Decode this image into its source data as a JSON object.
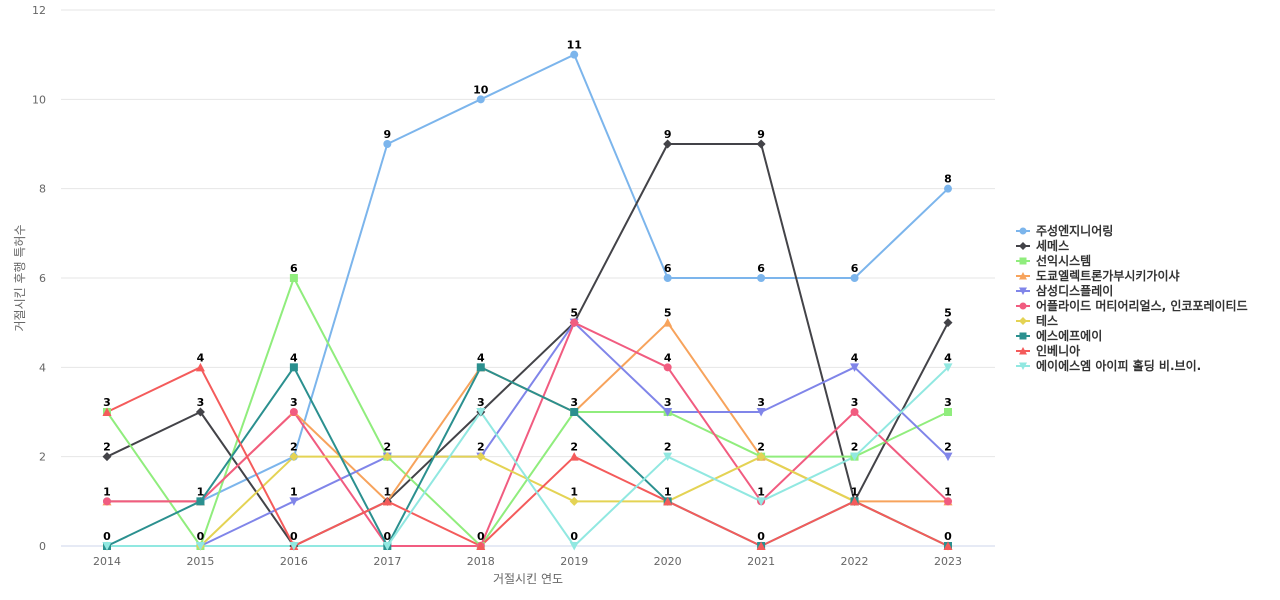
{
  "chart_data": {
    "type": "line",
    "title": "",
    "xlabel": "거절시킨 연도",
    "ylabel": "거절시킨 후행 특허수",
    "ylim": [
      0,
      12
    ],
    "yticks": [
      0,
      2,
      4,
      6,
      8,
      10,
      12
    ],
    "categories": [
      "2014",
      "2015",
      "2016",
      "2017",
      "2018",
      "2019",
      "2020",
      "2021",
      "2022",
      "2023"
    ],
    "legend_position": "right",
    "grid": true,
    "series": [
      {
        "name": "주성엔지니어링",
        "color": "#7cb5ec",
        "marker": "circle",
        "values": [
          1,
          1,
          2,
          9,
          10,
          11,
          6,
          6,
          6,
          8
        ]
      },
      {
        "name": "세메스",
        "color": "#434348",
        "marker": "diamond",
        "values": [
          2,
          3,
          0,
          1,
          3,
          5,
          9,
          9,
          1,
          5
        ]
      },
      {
        "name": "선익시스템",
        "color": "#90ed7d",
        "marker": "square",
        "values": [
          3,
          0,
          6,
          2,
          0,
          3,
          3,
          2,
          2,
          3
        ]
      },
      {
        "name": "도쿄엘렉트론가부시키가이샤",
        "color": "#f7a35c",
        "marker": "triangle",
        "values": [
          1,
          1,
          3,
          1,
          4,
          3,
          5,
          2,
          1,
          1
        ]
      },
      {
        "name": "삼성디스플레이",
        "color": "#8085e9",
        "marker": "triangle-down",
        "values": [
          0,
          0,
          1,
          2,
          2,
          5,
          3,
          3,
          4,
          2
        ]
      },
      {
        "name": "어플라이드 머티어리얼스, 인코포레이티드",
        "color": "#f15c80",
        "marker": "circle",
        "values": [
          1,
          1,
          3,
          0,
          0,
          5,
          4,
          1,
          3,
          1
        ]
      },
      {
        "name": "테스",
        "color": "#e4d354",
        "marker": "diamond",
        "values": [
          0,
          0,
          2,
          2,
          2,
          1,
          1,
          2,
          1,
          0
        ]
      },
      {
        "name": "에스에프에이",
        "color": "#2b908f",
        "marker": "square",
        "values": [
          0,
          1,
          4,
          0,
          4,
          3,
          1,
          0,
          1,
          0
        ]
      },
      {
        "name": "인베니아",
        "color": "#f45b5b",
        "marker": "triangle",
        "values": [
          3,
          4,
          0,
          1,
          0,
          2,
          1,
          0,
          1,
          0
        ]
      },
      {
        "name": "에이에스엠 아이피 홀딩 비.브이.",
        "color": "#91e8e1",
        "marker": "triangle-down",
        "values": [
          0,
          0,
          0,
          0,
          3,
          0,
          2,
          1,
          2,
          4
        ]
      }
    ],
    "point_labels": [
      {
        "x": "2014",
        "label": "3",
        "series": "선익시스템"
      },
      {
        "x": "2014",
        "label": "2",
        "series": "세메스"
      },
      {
        "x": "2014",
        "label": "1",
        "series": "주성엔지니어링"
      },
      {
        "x": "2014",
        "label": "0",
        "series": "삼성디스플레이"
      },
      {
        "x": "2015",
        "label": "4",
        "series": "인베니아"
      },
      {
        "x": "2015",
        "label": "3",
        "series": "세메스"
      },
      {
        "x": "2015",
        "label": "1",
        "series": "주성엔지니어링"
      },
      {
        "x": "2015",
        "label": "0",
        "series": "선익시스템"
      },
      {
        "x": "2016",
        "label": "6",
        "series": "선익시스템"
      },
      {
        "x": "2016",
        "label": "4",
        "series": "에스에프에이"
      },
      {
        "x": "2016",
        "label": "3",
        "series": "어플라이드 머티어리얼스, 인코포레이티드"
      },
      {
        "x": "2016",
        "label": "2",
        "series": "주성엔지니어링"
      },
      {
        "x": "2016",
        "label": "1",
        "series": "삼성디스플레이"
      },
      {
        "x": "2016",
        "label": "0",
        "series": "세메스"
      },
      {
        "x": "2017",
        "label": "9",
        "series": "주성엔지니어링"
      },
      {
        "x": "2017",
        "label": "2",
        "series": "선익시스템"
      },
      {
        "x": "2017",
        "label": "1",
        "series": "세메스"
      },
      {
        "x": "2017",
        "label": "0",
        "series": "어플라이드 머티어리얼스, 인코포레이티드"
      },
      {
        "x": "2018",
        "label": "10",
        "series": "주성엔지니어링"
      },
      {
        "x": "2018",
        "label": "4",
        "series": "도쿄엘렉트론가부시키가이샤"
      },
      {
        "x": "2018",
        "label": "3",
        "series": "세메스"
      },
      {
        "x": "2018",
        "label": "2",
        "series": "삼성디스플레이"
      },
      {
        "x": "2018",
        "label": "0",
        "series": "선익시스템"
      },
      {
        "x": "2019",
        "label": "11",
        "series": "주성엔지니어링"
      },
      {
        "x": "2019",
        "label": "5",
        "series": "세메스"
      },
      {
        "x": "2019",
        "label": "3",
        "series": "선익시스템"
      },
      {
        "x": "2019",
        "label": "2",
        "series": "인베니아"
      },
      {
        "x": "2019",
        "label": "1",
        "series": "테스"
      },
      {
        "x": "2019",
        "label": "0",
        "series": "에이에스엠 아이피 홀딩 비.브이."
      },
      {
        "x": "2020",
        "label": "9",
        "series": "세메스"
      },
      {
        "x": "2020",
        "label": "6",
        "series": "주성엔지니어링"
      },
      {
        "x": "2020",
        "label": "5",
        "series": "도쿄엘렉트론가부시키가이샤"
      },
      {
        "x": "2020",
        "label": "4",
        "series": "어플라이드 머티어리얼스, 인코포레이티드"
      },
      {
        "x": "2020",
        "label": "3",
        "series": "선익시스템"
      },
      {
        "x": "2020",
        "label": "2",
        "series": "에이에스엠 아이피 홀딩 비.브이."
      },
      {
        "x": "2020",
        "label": "1",
        "series": "테스"
      },
      {
        "x": "2021",
        "label": "9",
        "series": "세메스"
      },
      {
        "x": "2021",
        "label": "6",
        "series": "주성엔지니어링"
      },
      {
        "x": "2021",
        "label": "3",
        "series": "삼성디스플레이"
      },
      {
        "x": "2021",
        "label": "2",
        "series": "선익시스템"
      },
      {
        "x": "2021",
        "label": "1",
        "series": "어플라이드 머티어리얼스, 인코포레이티드"
      },
      {
        "x": "2021",
        "label": "0",
        "series": "에스에프에이"
      },
      {
        "x": "2022",
        "label": "6",
        "series": "주성엔지니어링"
      },
      {
        "x": "2022",
        "label": "4",
        "series": "삼성디스플레이"
      },
      {
        "x": "2022",
        "label": "3",
        "series": "어플라이드 머티어리얼스, 인코포레이티드"
      },
      {
        "x": "2022",
        "label": "2",
        "series": "선익시스템"
      },
      {
        "x": "2022",
        "label": "1",
        "series": "세메스"
      },
      {
        "x": "2023",
        "label": "8",
        "series": "주성엔지니어링"
      },
      {
        "x": "2023",
        "label": "5",
        "series": "세메스"
      },
      {
        "x": "2023",
        "label": "4",
        "series": "에이에스엠 아이피 홀딩 비.브이."
      },
      {
        "x": "2023",
        "label": "3",
        "series": "선익시스템"
      },
      {
        "x": "2023",
        "label": "2",
        "series": "삼성디스플레이"
      },
      {
        "x": "2023",
        "label": "1",
        "series": "어플라이드 머티어리얼스, 인코포레이티드"
      },
      {
        "x": "2023",
        "label": "0",
        "series": "테스"
      }
    ]
  }
}
